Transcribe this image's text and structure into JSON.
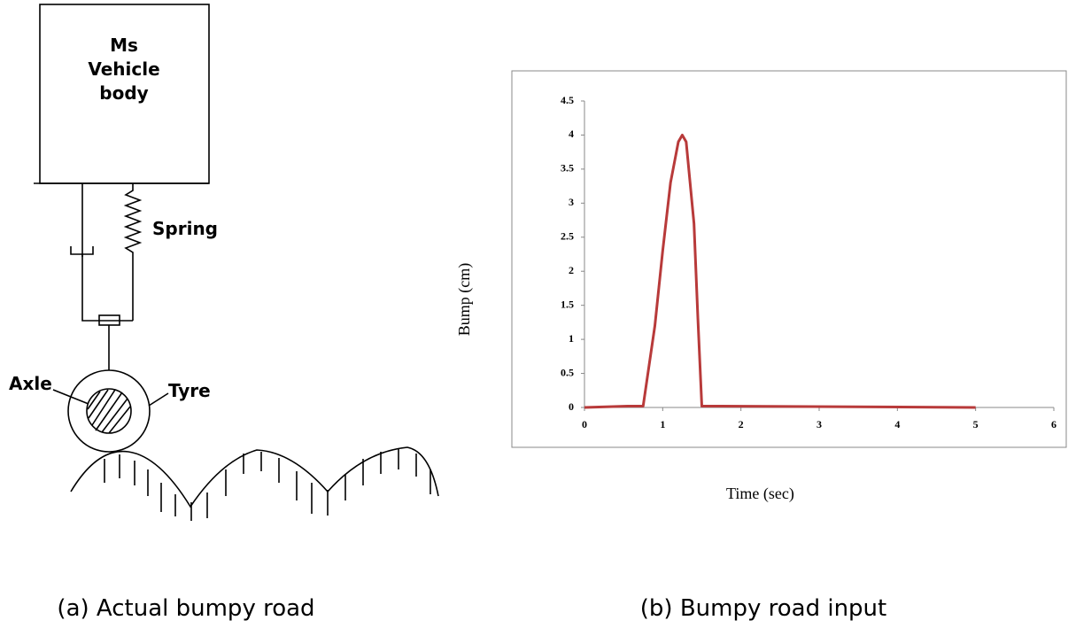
{
  "diagram": {
    "body_line1": "Ms",
    "body_line2": "Vehicle",
    "body_line3": "body",
    "spring_label": "Spring",
    "axle_label": "Axle",
    "tyre_label": "Tyre"
  },
  "chart_data": {
    "type": "line",
    "x_label": "Time (sec)",
    "y_label": "Bump (cm)",
    "x": [
      0,
      0.55,
      0.75,
      0.9,
      1.0,
      1.1,
      1.2,
      1.25,
      1.3,
      1.4,
      1.45,
      1.5,
      1.75,
      5
    ],
    "values": [
      0,
      0.02,
      0.02,
      1.2,
      2.3,
      3.3,
      3.9,
      4,
      3.9,
      2.7,
      1.3,
      0.02,
      0.02,
      0
    ],
    "color": "#b83a3a",
    "xlim": [
      0,
      6
    ],
    "xticks": [
      0,
      1,
      2,
      3,
      4,
      5,
      6
    ],
    "ylim": [
      0,
      4.5
    ],
    "yticks": [
      0,
      0.5,
      1,
      1.5,
      2,
      2.5,
      3,
      3.5,
      4,
      4.5
    ],
    "grid": false
  },
  "captions": [
    "(a) Actual bumpy road",
    "(b) Bumpy road input"
  ]
}
